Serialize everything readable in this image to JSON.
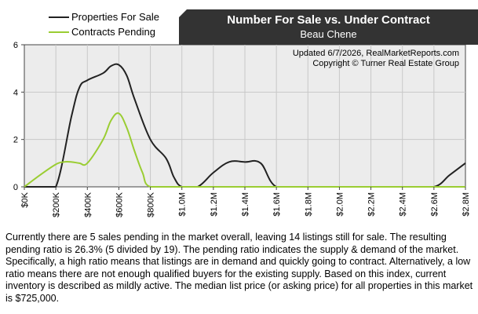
{
  "chart_data": {
    "type": "line",
    "title": "Number For Sale vs. Under Contract",
    "subtitle": "Beau Chene",
    "xlabel": "",
    "ylabel": "",
    "ylim": [
      0,
      6
    ],
    "xlim": [
      0,
      2800000
    ],
    "yticks": [
      "0",
      "2",
      "4",
      "6"
    ],
    "xticks": [
      "$0K",
      "$200K",
      "$400K",
      "$600K",
      "$800K",
      "$1.0M",
      "$1.2M",
      "$1.4M",
      "$1.6M",
      "$1.8M",
      "$2.0M",
      "$2.2M",
      "$2.4M",
      "$2.6M",
      "$2.8M"
    ],
    "grid": true,
    "legend_position": "top-left",
    "series": [
      {
        "name": "Properties For Sale",
        "color": "#222222",
        "x": [
          0,
          100000,
          200000,
          300000,
          350000,
          400000,
          500000,
          550000,
          600000,
          650000,
          700000,
          800000,
          900000,
          950000,
          1000000,
          1100000,
          1200000,
          1300000,
          1400000,
          1500000,
          1600000,
          1800000,
          2000000,
          2200000,
          2400000,
          2600000,
          2700000,
          2800000
        ],
        "y": [
          0,
          0,
          0,
          3.0,
          4.2,
          4.5,
          4.8,
          5.1,
          5.15,
          4.7,
          3.7,
          2.0,
          1.2,
          0.4,
          0,
          0,
          0.6,
          1.05,
          1.05,
          1.0,
          0,
          0,
          0,
          0,
          0,
          0,
          0.5,
          1.0
        ]
      },
      {
        "name": "Contracts Pending",
        "color": "#9acd32",
        "x": [
          0,
          100000,
          200000,
          250000,
          300000,
          350000,
          400000,
          500000,
          550000,
          600000,
          650000,
          700000,
          750000,
          800000,
          1000000,
          1200000,
          1400000,
          1600000,
          1800000,
          2000000,
          2200000,
          2400000,
          2600000,
          2800000
        ],
        "y": [
          0,
          0.5,
          0.95,
          1.05,
          1.05,
          1.0,
          1.0,
          2.0,
          2.8,
          3.1,
          2.5,
          1.5,
          0.6,
          0,
          0,
          0,
          0,
          0,
          0,
          0,
          0,
          0,
          0,
          0
        ]
      }
    ]
  },
  "header": {
    "title": "Number For Sale vs. Under Contract",
    "subtitle": "Beau Chene"
  },
  "legend": {
    "for_sale": "Properties For Sale",
    "pending": "Contracts Pending"
  },
  "credits": {
    "updated": "Updated 6/7/2026, RealMarketReports.com",
    "copyright": "Copyright © Turner Real Estate Group"
  },
  "description": "Currently there are 5 sales pending in the market overall, leaving 14 listings still for sale.  The resulting pending ratio is 26.3% (5 divided by 19).  The pending ratio indicates the supply & demand of the market.  Specifically, a high ratio means that listings are in demand and quickly going to contract.  Alternatively, a low ratio means there are not enough qualified buyers for the existing supply.  Based on this index, current inventory is described as mildly active.  The median list price (or asking price) for all properties in this market is $725,000."
}
